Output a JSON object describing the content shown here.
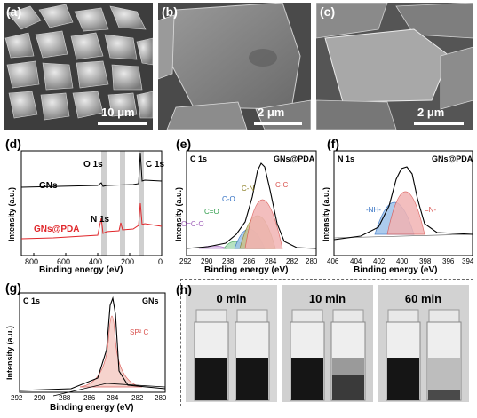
{
  "sem": {
    "a": {
      "letter": "(a)",
      "scale_label": "10 μm"
    },
    "b": {
      "letter": "(b)",
      "scale_label": "2 μm"
    },
    "c": {
      "letter": "(c)",
      "scale_label": "2 μm"
    }
  },
  "panel_d": {
    "letter": "(d)",
    "xlabel": "Binding energy (eV)",
    "ylabel": "Intensity (a.u.)",
    "ticks": [
      "800",
      "600",
      "400",
      "200",
      "0"
    ],
    "labels": {
      "o1s": "O 1s",
      "c1s": "C 1s",
      "n1s": "N 1s",
      "gns": "GNs",
      "gnspda": "GNs@PDA"
    },
    "colors": {
      "gns": "#000000",
      "gnspda": "#e0262a"
    }
  },
  "panel_e": {
    "letter": "(e)",
    "title_left": "C 1s",
    "title_right": "GNs@PDA",
    "xlabel": "Binding energy (eV)",
    "ylabel": "Intensity (a.u.)",
    "ticks": [
      "292",
      "290",
      "288",
      "286",
      "284",
      "282",
      "280"
    ],
    "peaks": {
      "cc": "C-C",
      "cn": "C-N",
      "co": "C-O",
      "c_o": "C=O",
      "oco": "O=C-O"
    }
  },
  "panel_f": {
    "letter": "(f)",
    "title_left": "N 1s",
    "title_right": "GNs@PDA",
    "xlabel": "Binding energy (eV)",
    "ylabel": "Intensity (a.u.)",
    "ticks": [
      "406",
      "404",
      "402",
      "400",
      "398",
      "396",
      "394"
    ],
    "peaks": {
      "nh": "-NH-",
      "n_eq": "=N-"
    }
  },
  "panel_g": {
    "letter": "(g)",
    "title_left": "C 1s",
    "title_right": "GNs",
    "xlabel": "Binding energy (eV)",
    "ylabel": "Intensity (a.u.)",
    "ticks": [
      "292",
      "290",
      "288",
      "286",
      "284",
      "282",
      "280"
    ],
    "peak_label": "SP² C"
  },
  "panel_h": {
    "letter": "(h)",
    "times": [
      "0 min",
      "10 min",
      "60 min"
    ]
  }
}
